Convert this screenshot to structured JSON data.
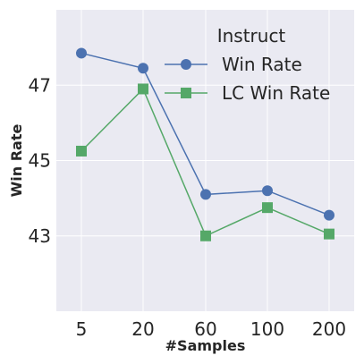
{
  "chart_data": {
    "type": "line",
    "categories": [
      "5",
      "20",
      "60",
      "100",
      "200"
    ],
    "series": [
      {
        "name": "Win Rate",
        "values": [
          47.85,
          47.45,
          44.1,
          44.2,
          43.55
        ],
        "color": "#4c72b0",
        "marker": "circle"
      },
      {
        "name": "LC Win Rate",
        "values": [
          45.25,
          46.9,
          43.0,
          43.75,
          43.05
        ],
        "color": "#55a868",
        "marker": "square"
      }
    ],
    "title": "",
    "xlabel": "#Samples",
    "ylabel": "Win Rate",
    "ylim": [
      41.0,
      49.0
    ],
    "yticks": [
      43,
      45,
      47
    ],
    "legend": {
      "title": "Instruct",
      "position": "top-right"
    },
    "grid": true,
    "background": "#eaeaf2"
  }
}
